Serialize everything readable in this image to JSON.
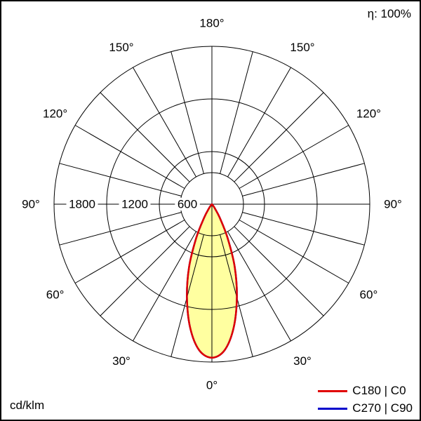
{
  "header": {
    "efficiency": "η: 100%"
  },
  "footer": {
    "unit": "cd/klm"
  },
  "legend": {
    "items": [
      {
        "label": "C180 | C0",
        "color": "#e10000"
      },
      {
        "label": "C270 | C90",
        "color": "#0000cc"
      }
    ]
  },
  "chart_data": {
    "type": "polar",
    "variant": "luminous-intensity-distribution",
    "unit": "cd/klm",
    "efficiency": "100%",
    "max_value": 1800,
    "grid": {
      "rings": [
        {
          "value": 600,
          "label": "600"
        },
        {
          "value": 1200,
          "label": "1200"
        },
        {
          "value": 1800,
          "label": "1800"
        }
      ],
      "spoke_step_deg": 15,
      "inner_blank_radius_value": 360,
      "grid_color": "#000000"
    },
    "angle_labels": [
      {
        "deg": 0,
        "label": "0°"
      },
      {
        "deg": 30,
        "label": "30°"
      },
      {
        "deg": 60,
        "label": "60°"
      },
      {
        "deg": 90,
        "label": "90°"
      },
      {
        "deg": 120,
        "label": "120°"
      },
      {
        "deg": 150,
        "label": "150°"
      },
      {
        "deg": 180,
        "label": "180°"
      }
    ],
    "series": [
      {
        "name": "C180 | C0",
        "color": "#e10000",
        "fill": "#ffffa0",
        "symmetric_about_vertical": true,
        "angles_deg": [
          0,
          5,
          10,
          15,
          20,
          25,
          30,
          35,
          40,
          45
        ],
        "values": [
          1750,
          1670,
          1430,
          1100,
          760,
          420,
          180,
          60,
          15,
          0
        ]
      },
      {
        "name": "C270 | C90",
        "color": "#0000cc",
        "symmetric_about_vertical": true,
        "angles_deg": [
          0,
          5,
          10,
          15,
          20,
          25,
          30,
          35,
          40,
          45
        ],
        "values": [
          1750,
          1670,
          1430,
          1100,
          760,
          420,
          180,
          60,
          15,
          0
        ],
        "note": "coincides with C180 | C0 curve and is hidden behind it"
      }
    ]
  }
}
